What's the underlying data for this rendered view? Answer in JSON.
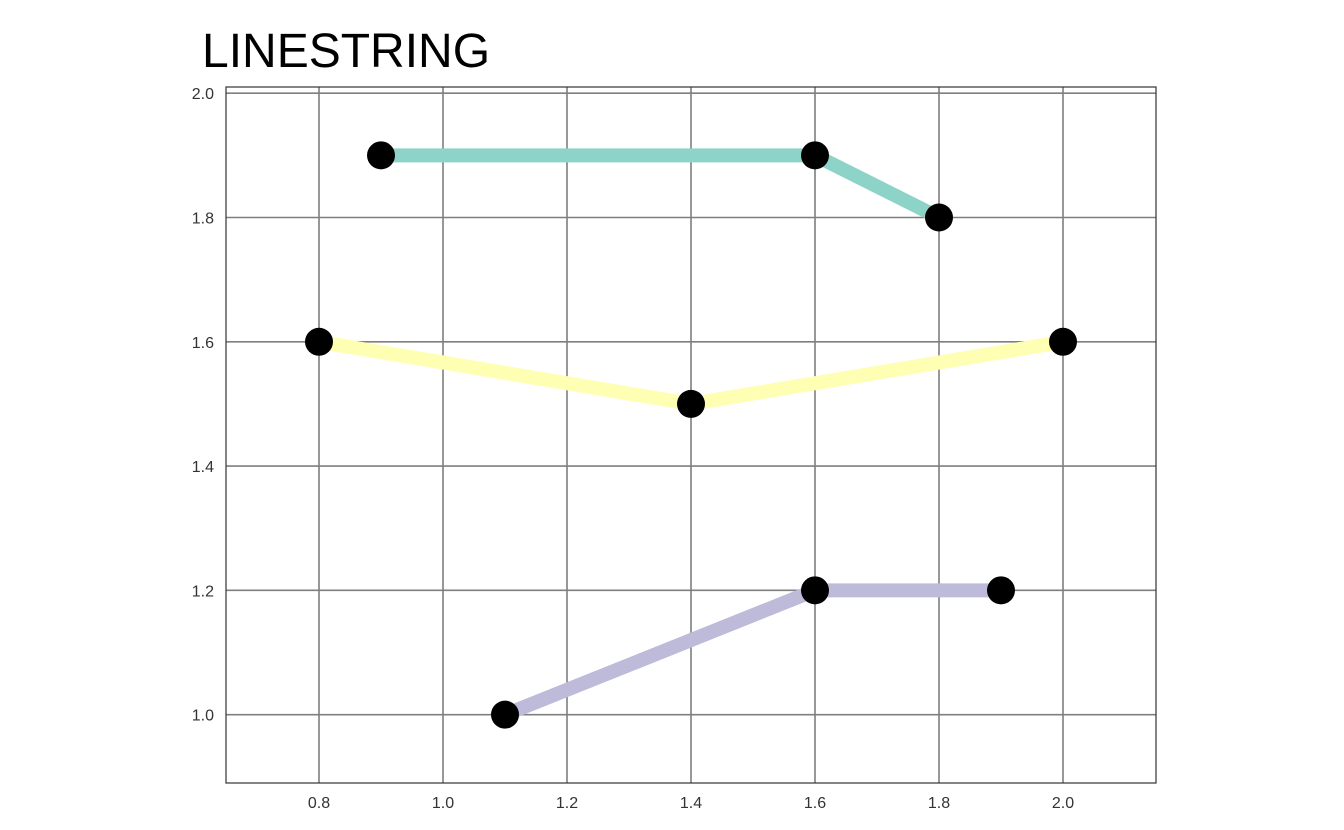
{
  "chart_data": {
    "type": "line",
    "title": "LINESTRING",
    "xlabel": "",
    "ylabel": "",
    "xlim": [
      0.65,
      2.15
    ],
    "ylim": [
      0.89,
      2.01
    ],
    "x_ticks": [
      0.8,
      1.0,
      1.2,
      1.4,
      1.6,
      1.8,
      2.0
    ],
    "x_tick_labels": [
      "0.8",
      "1.0",
      "1.2",
      "1.4",
      "1.6",
      "1.8",
      "2.0"
    ],
    "y_ticks": [
      1.0,
      1.2,
      1.4,
      1.6,
      1.8,
      2.0
    ],
    "y_tick_labels": [
      "1.0",
      "1.2",
      "1.4",
      "1.6",
      "1.8",
      "2.0"
    ],
    "grid": true,
    "vertex_color": "#000000",
    "series": [
      {
        "color": "#8dd3c7",
        "points": [
          [
            0.9,
            1.9
          ],
          [
            1.6,
            1.9
          ],
          [
            1.8,
            1.8
          ]
        ]
      },
      {
        "color": "#ffffb3",
        "points": [
          [
            0.8,
            1.6
          ],
          [
            1.4,
            1.5
          ],
          [
            2.0,
            1.6
          ]
        ]
      },
      {
        "color": "#bebada",
        "points": [
          [
            1.1,
            1.0
          ],
          [
            1.6,
            1.2
          ],
          [
            1.9,
            1.2
          ]
        ]
      }
    ]
  }
}
